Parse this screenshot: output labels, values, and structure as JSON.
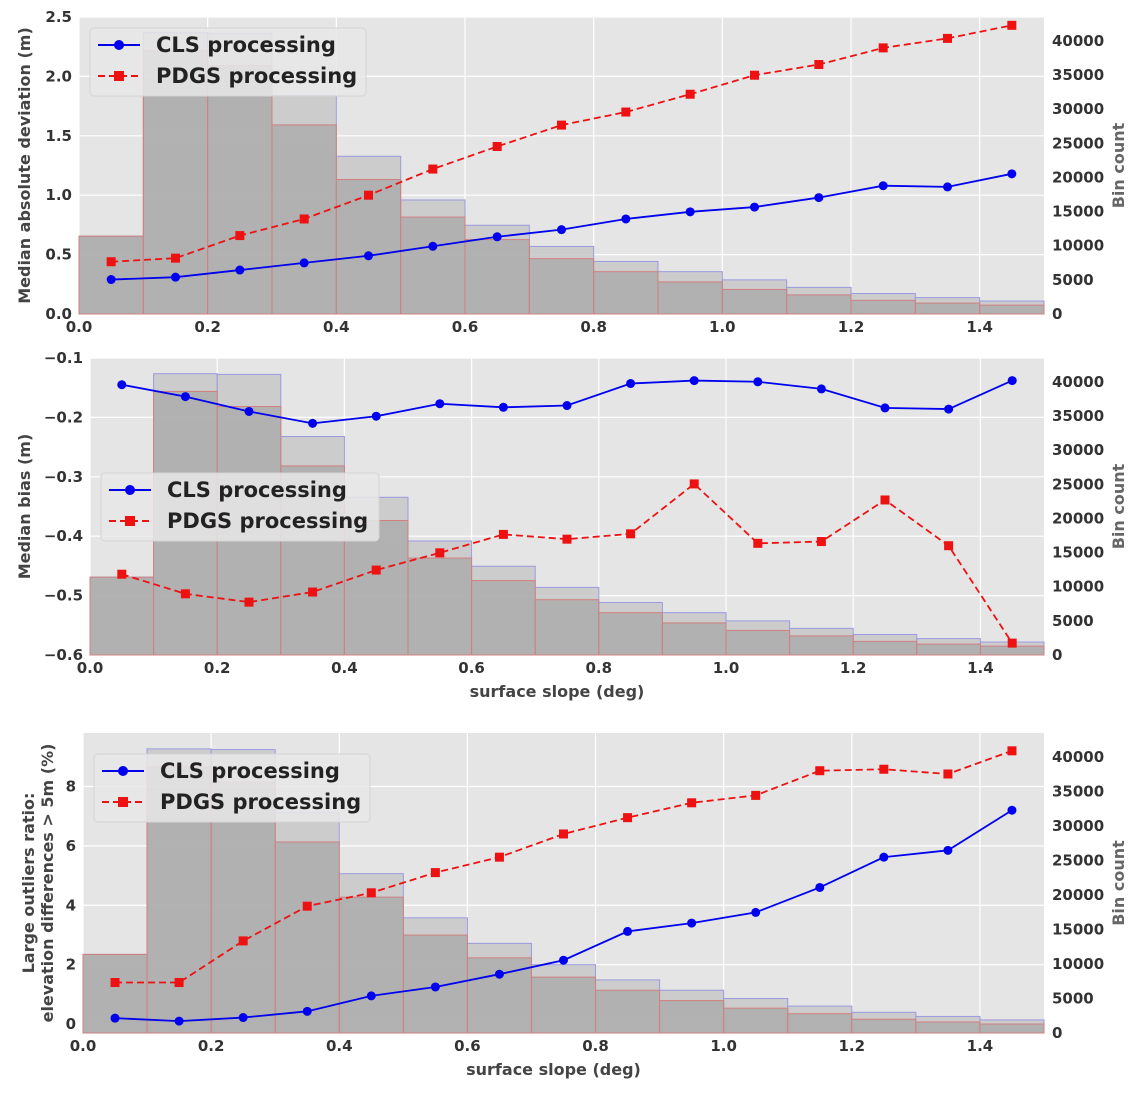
{
  "colors": {
    "axes_bg": "#e5e5e5",
    "grid": "#ffffff",
    "cls": "#0000ee",
    "pdgs": "#ee1111",
    "bar_a_fill": "#c8c8c8",
    "bar_a_edge": "#9a9ae0",
    "bar_b_fill": "#a8a8a8",
    "bar_b_edge": "#d08080"
  },
  "chart_data": [
    {
      "type": "line",
      "ylabel": [
        "Median absolute deviation (m)"
      ],
      "xlabel": "",
      "y2label": "Bin count",
      "xlim": [
        0,
        1.5
      ],
      "ylim": [
        0,
        2.5
      ],
      "y2lim": [
        0,
        43500
      ],
      "xticks": [
        0.0,
        0.2,
        0.4,
        0.6,
        0.8,
        1.0,
        1.2,
        1.4
      ],
      "xtick_labels": [
        "0.0",
        "0.2",
        "0.4",
        "0.6",
        "0.8",
        "1.0",
        "1.2",
        "1.4"
      ],
      "yticks": [
        0.0,
        0.5,
        1.0,
        1.5,
        2.0,
        2.5
      ],
      "ytick_labels": [
        "0.0",
        "0.5",
        "1.0",
        "1.5",
        "2.0",
        "2.5"
      ],
      "y2ticks": [
        0,
        5000,
        10000,
        15000,
        20000,
        25000,
        30000,
        35000,
        40000
      ],
      "y2tick_labels": [
        "0",
        "5000",
        "10000",
        "15000",
        "20000",
        "25000",
        "30000",
        "35000",
        "40000"
      ],
      "legend": {
        "position": "upper-left",
        "entries": [
          "CLS processing",
          "PDGS processing"
        ]
      },
      "x": [
        0.05,
        0.15,
        0.25,
        0.35,
        0.45,
        0.55,
        0.65,
        0.75,
        0.85,
        0.95,
        1.05,
        1.15,
        1.25,
        1.35,
        1.45
      ],
      "series": [
        {
          "name": "CLS processing",
          "marker": "circle",
          "values": [
            0.29,
            0.31,
            0.37,
            0.43,
            0.49,
            0.57,
            0.65,
            0.71,
            0.8,
            0.86,
            0.9,
            0.98,
            1.08,
            1.07,
            1.18
          ]
        },
        {
          "name": "PDGS processing",
          "marker": "square",
          "values": [
            0.44,
            0.47,
            0.66,
            0.8,
            1.0,
            1.22,
            1.41,
            1.59,
            1.7,
            1.85,
            2.01,
            2.1,
            2.24,
            2.32,
            2.43
          ]
        }
      ],
      "bin_edges": [
        0,
        0.1,
        0.2,
        0.3,
        0.4,
        0.5,
        0.6,
        0.7,
        0.8,
        0.9,
        1.0,
        1.1,
        1.2,
        1.3,
        1.4,
        1.5
      ],
      "histograms": [
        {
          "name": "count-a",
          "values": [
            11400,
            41200,
            41100,
            32000,
            23100,
            16700,
            13000,
            9900,
            7700,
            6200,
            5000,
            3900,
            3000,
            2400,
            1900
          ]
        },
        {
          "name": "count-b",
          "values": [
            11400,
            38600,
            36400,
            27700,
            19700,
            14200,
            10900,
            8100,
            6200,
            4700,
            3600,
            2800,
            2000,
            1600,
            1300
          ]
        }
      ]
    },
    {
      "type": "line",
      "ylabel": [
        "Median bias (m)"
      ],
      "xlabel": "surface slope (deg)",
      "y2label": "Bin count",
      "xlim": [
        0,
        1.5
      ],
      "ylim": [
        -0.6,
        -0.1
      ],
      "y2lim": [
        0,
        43500
      ],
      "xticks": [
        0.0,
        0.2,
        0.4,
        0.6,
        0.8,
        1.0,
        1.2,
        1.4
      ],
      "xtick_labels": [
        "0.0",
        "0.2",
        "0.4",
        "0.6",
        "0.8",
        "1.0",
        "1.2",
        "1.4"
      ],
      "yticks": [
        -0.6,
        -0.5,
        -0.4,
        -0.3,
        -0.2,
        -0.1
      ],
      "ytick_labels": [
        "−0.6",
        "−0.5",
        "−0.4",
        "−0.3",
        "−0.2",
        "−0.1"
      ],
      "y2ticks": [
        0,
        5000,
        10000,
        15000,
        20000,
        25000,
        30000,
        35000,
        40000
      ],
      "y2tick_labels": [
        "0",
        "5000",
        "10000",
        "15000",
        "20000",
        "25000",
        "30000",
        "35000",
        "40000"
      ],
      "legend": {
        "position": "center-left",
        "entries": [
          "CLS processing",
          "PDGS processing"
        ]
      },
      "x": [
        0.05,
        0.15,
        0.25,
        0.35,
        0.45,
        0.55,
        0.65,
        0.75,
        0.85,
        0.95,
        1.05,
        1.15,
        1.25,
        1.35,
        1.45
      ],
      "series": [
        {
          "name": "CLS processing",
          "marker": "circle",
          "values": [
            -0.145,
            -0.165,
            -0.19,
            -0.21,
            -0.198,
            -0.177,
            -0.183,
            -0.18,
            -0.143,
            -0.138,
            -0.14,
            -0.152,
            -0.184,
            -0.186,
            -0.138
          ]
        },
        {
          "name": "PDGS processing",
          "marker": "square",
          "values": [
            -0.464,
            -0.497,
            -0.511,
            -0.494,
            -0.457,
            -0.428,
            -0.397,
            -0.405,
            -0.396,
            -0.312,
            -0.412,
            -0.409,
            -0.339,
            -0.416,
            -0.58
          ]
        }
      ],
      "bin_edges": [
        0,
        0.1,
        0.2,
        0.3,
        0.4,
        0.5,
        0.6,
        0.7,
        0.8,
        0.9,
        1.0,
        1.1,
        1.2,
        1.3,
        1.4,
        1.5
      ],
      "histograms": [
        {
          "name": "count-a",
          "values": [
            11400,
            41200,
            41100,
            32000,
            23100,
            16700,
            13000,
            9900,
            7700,
            6200,
            5000,
            3900,
            3000,
            2400,
            1900
          ]
        },
        {
          "name": "count-b",
          "values": [
            11400,
            38600,
            36400,
            27700,
            19700,
            14200,
            10900,
            8100,
            6200,
            4700,
            3600,
            2800,
            2000,
            1600,
            1300
          ]
        }
      ]
    },
    {
      "type": "line",
      "ylabel": [
        "Large outliers ratio:",
        "elevation differences > 5m (%)"
      ],
      "xlabel": "surface slope (deg)",
      "y2label": "Bin count",
      "xlim": [
        0,
        1.5
      ],
      "ylim": [
        -0.3,
        9.8
      ],
      "y2lim": [
        0,
        43500
      ],
      "xticks": [
        0.0,
        0.2,
        0.4,
        0.6,
        0.8,
        1.0,
        1.2,
        1.4
      ],
      "xtick_labels": [
        "0.0",
        "0.2",
        "0.4",
        "0.6",
        "0.8",
        "1.0",
        "1.2",
        "1.4"
      ],
      "yticks": [
        0,
        2,
        4,
        6,
        8
      ],
      "ytick_labels": [
        "0",
        "2",
        "4",
        "6",
        "8"
      ],
      "y2ticks": [
        0,
        5000,
        10000,
        15000,
        20000,
        25000,
        30000,
        35000,
        40000
      ],
      "y2tick_labels": [
        "0",
        "5000",
        "10000",
        "15000",
        "20000",
        "25000",
        "30000",
        "35000",
        "40000"
      ],
      "legend": {
        "position": "upper-left",
        "entries": [
          "CLS processing",
          "PDGS processing"
        ]
      },
      "x": [
        0.05,
        0.15,
        0.25,
        0.35,
        0.45,
        0.55,
        0.65,
        0.75,
        0.85,
        0.95,
        1.05,
        1.15,
        1.25,
        1.35,
        1.45
      ],
      "series": [
        {
          "name": "CLS processing",
          "marker": "circle",
          "values": [
            0.2,
            0.1,
            0.22,
            0.43,
            0.95,
            1.25,
            1.68,
            2.15,
            3.12,
            3.4,
            3.76,
            4.6,
            5.62,
            5.85,
            7.2
          ]
        },
        {
          "name": "PDGS processing",
          "marker": "square",
          "values": [
            1.4,
            1.4,
            2.8,
            3.97,
            4.42,
            5.1,
            5.62,
            6.4,
            6.95,
            7.45,
            7.7,
            8.53,
            8.58,
            8.42,
            9.2
          ]
        }
      ],
      "bin_edges": [
        0,
        0.1,
        0.2,
        0.3,
        0.4,
        0.5,
        0.6,
        0.7,
        0.8,
        0.9,
        1.0,
        1.1,
        1.2,
        1.3,
        1.4,
        1.5
      ],
      "histograms": [
        {
          "name": "count-a",
          "values": [
            11400,
            41200,
            41100,
            32000,
            23100,
            16700,
            13000,
            9900,
            7700,
            6200,
            5000,
            3900,
            3000,
            2400,
            1900
          ]
        },
        {
          "name": "count-b",
          "values": [
            11400,
            38600,
            36400,
            27700,
            19700,
            14200,
            10900,
            8100,
            6200,
            4700,
            3600,
            2800,
            2000,
            1600,
            1300
          ]
        }
      ]
    }
  ]
}
